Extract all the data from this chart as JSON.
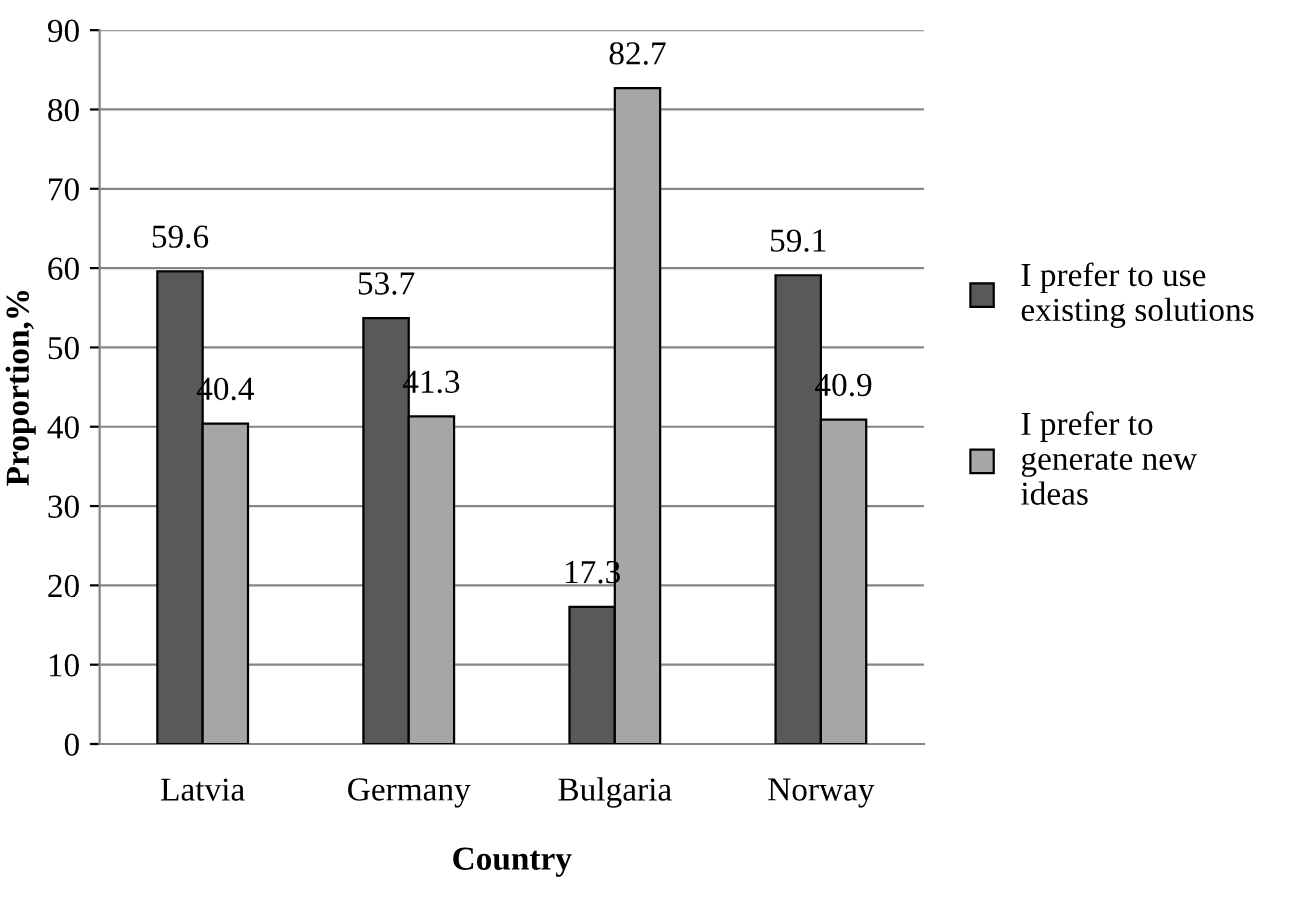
{
  "chart_data": {
    "type": "bar",
    "xlabel": "Country",
    "ylabel": "Proportion,%",
    "categories": [
      "Latvia",
      "Germany",
      "Bulgaria",
      "Norway"
    ],
    "series": [
      {
        "name": "I prefer to use\nexisting solutions",
        "color": "#595959",
        "values": [
          59.6,
          53.7,
          17.3,
          59.1
        ]
      },
      {
        "name": "I prefer to\ngenerate new\nideas",
        "color": "#a6a6a6",
        "values": [
          40.4,
          41.3,
          82.7,
          40.9
        ]
      }
    ],
    "ylim": [
      0,
      90
    ],
    "yticks": [
      0,
      10,
      20,
      30,
      40,
      50,
      60,
      70,
      80,
      90
    ],
    "grid": "y",
    "legend": "right",
    "data_labels": true
  }
}
